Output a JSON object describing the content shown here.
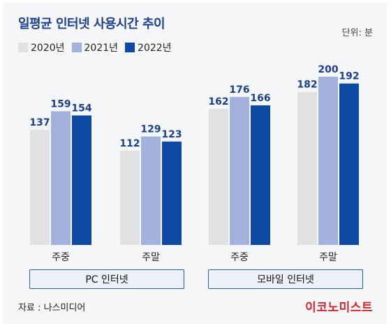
{
  "chart_data": {
    "type": "bar",
    "title": "일평균 인터넷 사용시간 추이",
    "unit_label": "단위: 분",
    "categories": [
      "주중",
      "주말",
      "주중",
      "주말"
    ],
    "groups": [
      {
        "label": "PC 인터넷",
        "categories": [
          "주중",
          "주말"
        ]
      },
      {
        "label": "모바일 인터넷",
        "categories": [
          "주중",
          "주말"
        ]
      }
    ],
    "series": [
      {
        "name": "2020년",
        "color": "#e1e1e3",
        "values": [
          137,
          112,
          162,
          182
        ]
      },
      {
        "name": "2021년",
        "color": "#a2b2dd",
        "values": [
          159,
          129,
          176,
          200
        ]
      },
      {
        "name": "2022년",
        "color": "#0e4aa3",
        "values": [
          154,
          123,
          166,
          192
        ]
      }
    ],
    "ylim": [
      0,
      200
    ],
    "grid": false,
    "legend": "top-left"
  },
  "source": "자료 : 나스미디어",
  "brand": "이코노미스트",
  "colors": {
    "title": "#1d3f8f",
    "value_label": "#1d3f8f",
    "brand": "#d7262e"
  }
}
